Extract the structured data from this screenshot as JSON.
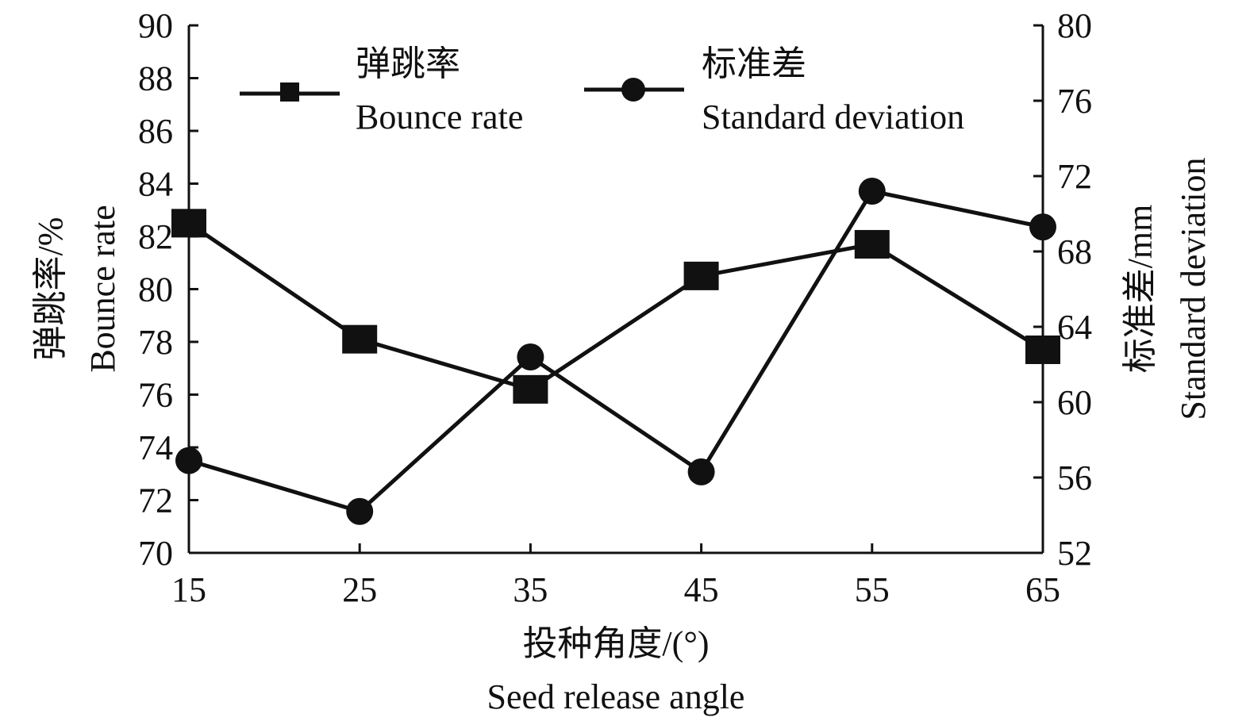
{
  "chart_data": {
    "type": "line",
    "x": [
      15,
      25,
      35,
      45,
      55,
      65
    ],
    "xlim": [
      15,
      65
    ],
    "xticks": [
      "15",
      "25",
      "35",
      "45",
      "55",
      "65"
    ],
    "xlabel_cn": "投种角度/(°)",
    "xlabel_en": "Seed release angle",
    "y_left": {
      "label_cn": "弹跳率/%",
      "label_en": "Bounce rate",
      "ylim": [
        70,
        90
      ],
      "ticks": [
        "70",
        "72",
        "74",
        "76",
        "78",
        "80",
        "82",
        "84",
        "86",
        "88",
        "90"
      ]
    },
    "y_right": {
      "label_cn": "标准差/mm",
      "label_en": "Standard deviation",
      "ylim": [
        52,
        80
      ],
      "ticks": [
        "52",
        "56",
        "60",
        "64",
        "68",
        "72",
        "76",
        "80"
      ]
    },
    "series": [
      {
        "name_cn": "弹跳率",
        "name_en": "Bounce rate",
        "axis": "left",
        "marker": "square",
        "values": [
          82.5,
          78.1,
          76.2,
          80.5,
          81.7,
          77.7
        ]
      },
      {
        "name_cn": "标准差",
        "name_en": "Standard deviation",
        "axis": "right",
        "marker": "circle",
        "values": [
          56.9,
          54.2,
          62.4,
          56.3,
          71.2,
          69.3
        ]
      }
    ],
    "legend_position": "top",
    "grid": false,
    "color": "#111111"
  }
}
